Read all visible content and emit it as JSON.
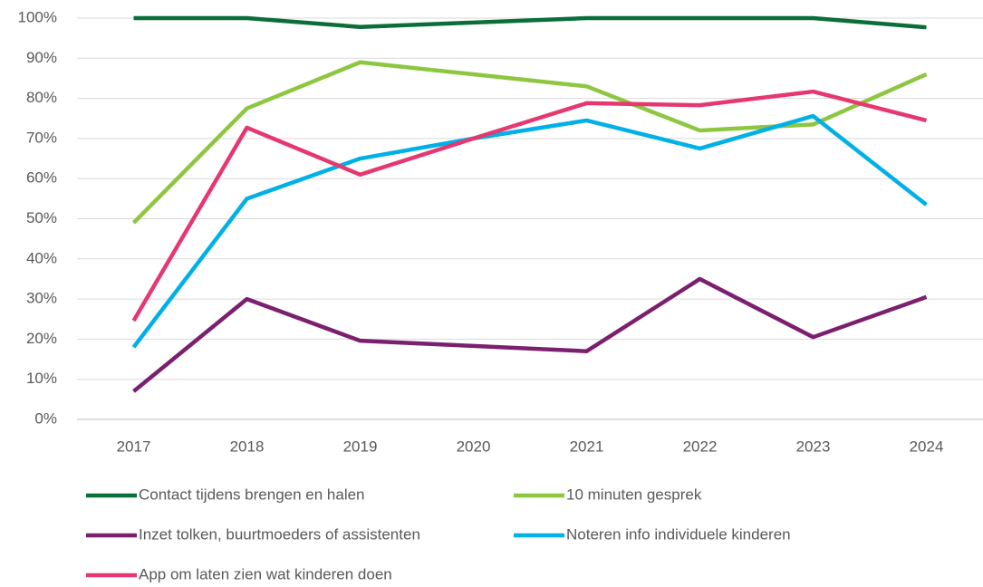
{
  "chart_data": {
    "type": "line",
    "categories": [
      "2017",
      "2018",
      "2019",
      "2020",
      "2021",
      "2022",
      "2023",
      "2024"
    ],
    "series": [
      {
        "name": "Contact tijdens brengen en halen",
        "color": "#0b6e3a",
        "values": [
          100,
          100,
          97.8,
          98.9,
          100,
          100,
          100,
          97.7
        ]
      },
      {
        "name": "10 minuten gesprek",
        "color": "#8dc63f",
        "values": [
          49,
          77.5,
          89,
          86,
          83,
          72,
          73.5,
          86
        ]
      },
      {
        "name": "Inzet tolken, buurtmoeders of assistenten",
        "color": "#7b1f6f",
        "values": [
          7,
          30,
          19.6,
          18.3,
          17,
          35,
          20.5,
          30.5
        ]
      },
      {
        "name": "Noteren info individuele kinderen",
        "color": "#00b0e6",
        "values": [
          18,
          55,
          65,
          70,
          74.5,
          67.5,
          75.6,
          53.5
        ]
      },
      {
        "name": "App om laten zien wat kinderen doen",
        "color": "#e63870",
        "values": [
          24.6,
          72.7,
          61,
          70,
          78.8,
          78.3,
          81.7,
          74.5
        ]
      }
    ],
    "ylim": [
      0,
      100
    ],
    "yticks": [
      {
        "value": 0,
        "label": "0%"
      },
      {
        "value": 10,
        "label": "10%"
      },
      {
        "value": 20,
        "label": "20%"
      },
      {
        "value": 30,
        "label": "30%"
      },
      {
        "value": 40,
        "label": "40%"
      },
      {
        "value": 50,
        "label": "50%"
      },
      {
        "value": 60,
        "label": "60%"
      },
      {
        "value": 70,
        "label": "70%"
      },
      {
        "value": 80,
        "label": "80%"
      },
      {
        "value": 90,
        "label": "90%"
      },
      {
        "value": 100,
        "label": "100%"
      }
    ],
    "grid": true
  }
}
